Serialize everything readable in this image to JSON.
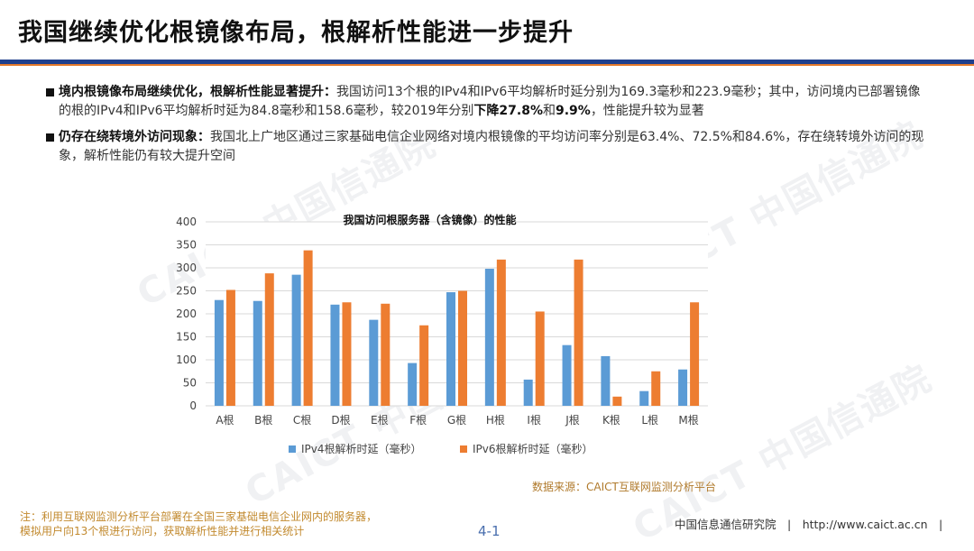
{
  "header": {
    "title": "我国继续优化根镜像布局，根解析性能进一步提升"
  },
  "bullets": [
    {
      "lead": "境内根镜像布局继续优化，根解析性能显著提升：",
      "text_a": "我国访问13个根的IPv4和IPv6平均解析时延分别为169.3毫秒和223.9毫秒；其中，访问境内已部署镜像的根的IPv4和IPv6平均解析时延为84.8毫秒和158.6毫秒，较2019年分别",
      "hl_a": "下降27.8%",
      "mid": "和",
      "hl_b": "9.9%",
      "text_b": "，性能提升较为显著"
    },
    {
      "lead": "仍存在绕转境外访问现象：",
      "text_a": "我国北上广地区通过三家基础电信企业网络对境内根镜像的平均访问率分别是63.4%、72.5%和84.6%，存在绕转境外访问的现象，解析性能仍有较大提升空间"
    }
  ],
  "chart_data": {
    "type": "bar",
    "title": "我国访问根服务器（含镜像）的性能",
    "categories": [
      "A根",
      "B根",
      "C根",
      "D根",
      "E根",
      "F根",
      "G根",
      "H根",
      "I根",
      "J根",
      "K根",
      "L根",
      "M根"
    ],
    "series": [
      {
        "name": "IPv4根解析时延（毫秒）",
        "color": "#5b9bd5",
        "values": [
          230,
          228,
          285,
          220,
          187,
          93,
          247,
          298,
          57,
          132,
          108,
          32,
          79
        ]
      },
      {
        "name": "IPv6根解析时延（毫秒）",
        "color": "#ed7d31",
        "values": [
          252,
          288,
          338,
          225,
          222,
          175,
          250,
          318,
          205,
          318,
          20,
          75,
          225
        ]
      }
    ],
    "ylim": [
      0,
      400
    ],
    "yticks": [
      0,
      50,
      100,
      150,
      200,
      250,
      300,
      350,
      400
    ],
    "grid": true,
    "legend": "bottom"
  },
  "source": "数据来源：CAICT互联网监测分析平台",
  "footnote": {
    "line1": "注：利用互联网监测分析平台部署在全国三家基础电信企业网内的服务器，",
    "line2": "模拟用户向13个根进行访问，获取解析性能并进行相关统计"
  },
  "page_number": "4-1",
  "footer_org": "中国信息通信研究院　|　http://www.caict.ac.cn　|",
  "watermark": "CAICT 中国信通院",
  "colors": {
    "title_rule": "#1f3f8c",
    "accent": "#e3782a"
  }
}
